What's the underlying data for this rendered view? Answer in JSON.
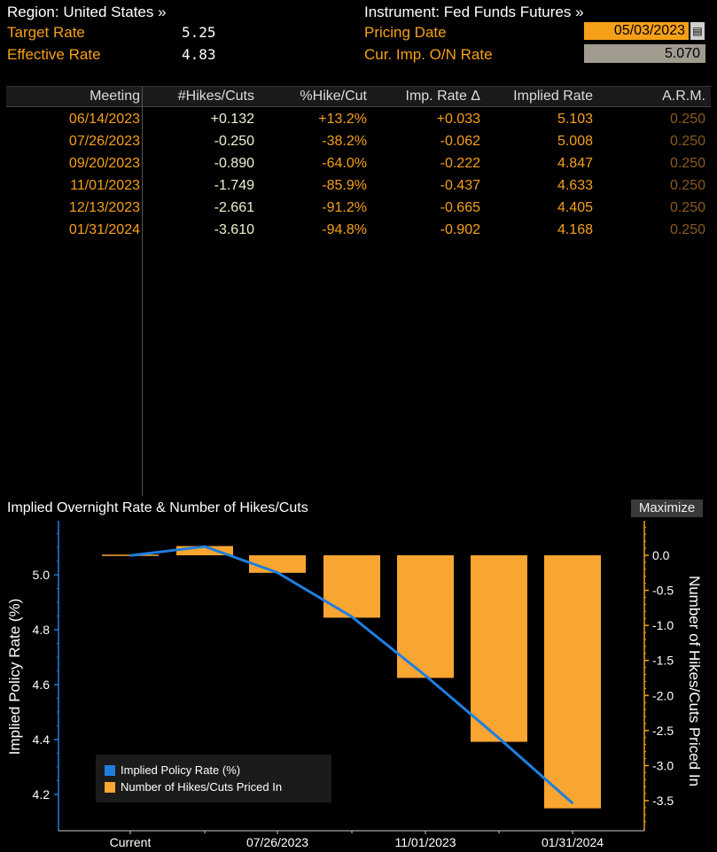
{
  "header": {
    "region": "Region: United States »",
    "instrument": "Instrument: Fed Funds Futures »",
    "target_rate_label": "Target Rate",
    "target_rate_value": "5.25",
    "effective_rate_label": "Effective Rate",
    "effective_rate_value": "4.83",
    "pricing_date_label": "Pricing Date",
    "pricing_date_value": "05/03/2023",
    "cur_imp_label": "Cur. Imp. O/N Rate",
    "cur_imp_value": "5.070"
  },
  "table": {
    "headers": [
      "Meeting",
      "#Hikes/Cuts",
      "%Hike/Cut",
      "Imp. Rate Δ",
      "Implied Rate",
      "A.R.M."
    ],
    "rows": [
      [
        "06/14/2023",
        "+0.132",
        "+13.2%",
        "+0.033",
        "5.103",
        "0.250"
      ],
      [
        "07/26/2023",
        "-0.250",
        "-38.2%",
        "-0.062",
        "5.008",
        "0.250"
      ],
      [
        "09/20/2023",
        "-0.890",
        "-64.0%",
        "-0.222",
        "4.847",
        "0.250"
      ],
      [
        "11/01/2023",
        "-1.749",
        "-85.9%",
        "-0.437",
        "4.633",
        "0.250"
      ],
      [
        "12/13/2023",
        "-2.661",
        "-91.2%",
        "-0.665",
        "4.405",
        "0.250"
      ],
      [
        "01/31/2024",
        "-3.610",
        "-94.8%",
        "-0.902",
        "4.168",
        "0.250"
      ]
    ]
  },
  "chart_title": "Implied Overnight Rate & Number of Hikes/Cuts",
  "maximize_label": "Maximize",
  "colors": {
    "orange": "#f6a01a",
    "blue": "#1e7fe0",
    "bar_orange": "#f9a532"
  },
  "chart_data": {
    "type": "bar+line",
    "title": "Implied Overnight Rate & Number of Hikes/Cuts",
    "categories": [
      "Current",
      "06/14/2023",
      "07/26/2023",
      "09/20/2023",
      "11/01/2023",
      "12/13/2023",
      "01/31/2024"
    ],
    "x_tick_labels": [
      "Current",
      "07/26/2023",
      "11/01/2023",
      "01/31/2024"
    ],
    "ylabel": "Implied Policy Rate (%)",
    "y2label": "Number of Hikes/Cuts Priced In",
    "ylim": [
      4.13,
      5.19
    ],
    "y_ticks": [
      4.2,
      4.4,
      4.6,
      4.8,
      5.0
    ],
    "y_tick_labels": [
      "4.2",
      "4.4",
      "4.6",
      "4.8",
      "5.0"
    ],
    "y2lim": [
      -3.95,
      0.45
    ],
    "y2_ticks": [
      0.0,
      -0.5,
      -1.0,
      -1.5,
      -2.0,
      -2.5,
      -3.0,
      -3.5
    ],
    "y2_tick_labels": [
      "0.0",
      "-0.5",
      "-1.0",
      "-1.5",
      "-2.0",
      "-2.5",
      "-3.0",
      "-3.5"
    ],
    "series": [
      {
        "name": "Implied Policy Rate (%)",
        "type": "line",
        "axis": "left",
        "values": [
          5.07,
          5.103,
          5.008,
          4.847,
          4.633,
          4.405,
          4.168
        ]
      },
      {
        "name": "Number of Hikes/Cuts Priced In",
        "type": "bar",
        "axis": "right",
        "values": [
          0.0,
          0.132,
          -0.25,
          -0.89,
          -1.749,
          -2.661,
          -3.61
        ]
      }
    ],
    "legend_position": "bottom-left"
  }
}
